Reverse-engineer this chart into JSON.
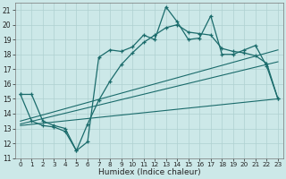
{
  "xlabel": "Humidex (Indice chaleur)",
  "bg_color": "#cce8e8",
  "grid_color": "#afd0d0",
  "line_color": "#1a6b6b",
  "xlim": [
    -0.5,
    23.5
  ],
  "ylim": [
    11,
    21.5
  ],
  "yticks": [
    11,
    12,
    13,
    14,
    15,
    16,
    17,
    18,
    19,
    20,
    21
  ],
  "xticks": [
    0,
    1,
    2,
    3,
    4,
    5,
    6,
    7,
    8,
    9,
    10,
    11,
    12,
    13,
    14,
    15,
    16,
    17,
    18,
    19,
    20,
    21,
    22,
    23
  ],
  "main_line_x": [
    0,
    1,
    2,
    3,
    4,
    5,
    6,
    7,
    8,
    9,
    10,
    11,
    12,
    13,
    14,
    15,
    16,
    17,
    18,
    19,
    20,
    21,
    22,
    23
  ],
  "main_line_y": [
    15.3,
    15.3,
    13.5,
    13.2,
    13.0,
    11.5,
    12.1,
    17.8,
    18.3,
    18.2,
    18.5,
    19.3,
    19.0,
    21.2,
    20.2,
    19.0,
    19.1,
    20.6,
    18.0,
    18.0,
    18.3,
    18.6,
    17.2,
    15.0
  ],
  "line2_x": [
    0,
    1,
    2,
    3,
    4,
    5,
    6,
    7,
    8,
    9,
    10,
    11,
    12,
    13,
    14,
    15,
    16,
    17,
    18,
    19,
    20,
    21,
    22,
    23
  ],
  "line2_y": [
    15.3,
    13.5,
    13.2,
    13.1,
    12.8,
    11.5,
    13.3,
    14.9,
    16.2,
    17.3,
    18.1,
    18.8,
    19.3,
    19.8,
    20.0,
    19.5,
    19.4,
    19.3,
    18.4,
    18.2,
    18.1,
    17.9,
    17.4,
    15.0
  ],
  "trend1_x": [
    0,
    23
  ],
  "trend1_y": [
    13.5,
    18.3
  ],
  "trend2_x": [
    0,
    23
  ],
  "trend2_y": [
    13.3,
    17.5
  ],
  "trend3_x": [
    0,
    23
  ],
  "trend3_y": [
    13.2,
    15.0
  ]
}
